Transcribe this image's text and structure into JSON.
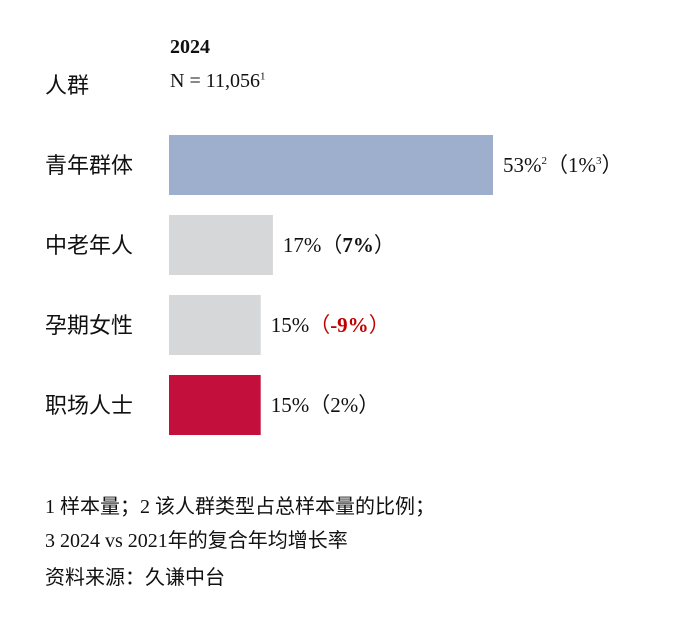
{
  "header": {
    "year": "2024",
    "group_label": "人群",
    "sample_size": "N = 11,056",
    "sample_size_note": "1"
  },
  "chart_data": {
    "type": "bar",
    "orientation": "horizontal",
    "categories": [
      "青年群体",
      "中老年人",
      "孕期女性",
      "职场人士"
    ],
    "values": [
      53,
      17,
      15,
      15
    ],
    "value_labels": [
      "53%",
      "17%",
      "15%",
      "15%"
    ],
    "value_label_notes": [
      "2",
      "",
      "",
      ""
    ],
    "growth": [
      1,
      7,
      -9,
      2
    ],
    "growth_labels": [
      "1%",
      "7%",
      "-9%",
      "2%"
    ],
    "growth_label_notes": [
      "3",
      "",
      "",
      ""
    ],
    "growth_bold": [
      false,
      true,
      true,
      false
    ],
    "bar_colors": [
      "#9dafcd",
      "#d6d7d9",
      "#d6d7d9",
      "#c20f3b"
    ],
    "growth_colors": [
      "#111111",
      "#111111",
      "#c00000",
      "#111111"
    ],
    "title": "",
    "xlabel": "",
    "ylabel": "",
    "xlim": [
      0,
      53
    ]
  },
  "footnotes": {
    "note1": "1 样本量；2 该人群类型占总样本量的比例；",
    "note2": "3 2024 vs 2021年的复合年均增长率",
    "source": "资料来源：久谦中台"
  }
}
